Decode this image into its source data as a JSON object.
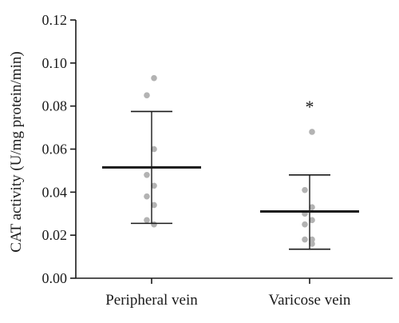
{
  "chart_data": {
    "type": "scatter",
    "ylabel": "CAT activity (U/mg protein/min)",
    "xlabel": "",
    "ylim": [
      0,
      0.12
    ],
    "yticks": [
      "0.00",
      "0.02",
      "0.04",
      "0.06",
      "0.08",
      "0.10",
      "0.12"
    ],
    "categories": [
      "Peripheral vein",
      "Varicose vein"
    ],
    "groups": [
      {
        "category": "Peripheral vein",
        "points": [
          0.093,
          0.085,
          0.06,
          0.048,
          0.043,
          0.038,
          0.034,
          0.027,
          0.025
        ],
        "mean": 0.0515,
        "error_upper": 0.0775,
        "error_lower": 0.0255,
        "annotation": ""
      },
      {
        "category": "Varicose vein",
        "points": [
          0.068,
          0.041,
          0.033,
          0.03,
          0.027,
          0.025,
          0.018,
          0.018,
          0.016
        ],
        "mean": 0.031,
        "error_upper": 0.048,
        "error_lower": 0.0135,
        "annotation": "*"
      }
    ],
    "colors": {
      "points": "#b3b3b3",
      "bars": "#1a1a1a",
      "axis": "#1a1a1a"
    },
    "grid": false
  }
}
